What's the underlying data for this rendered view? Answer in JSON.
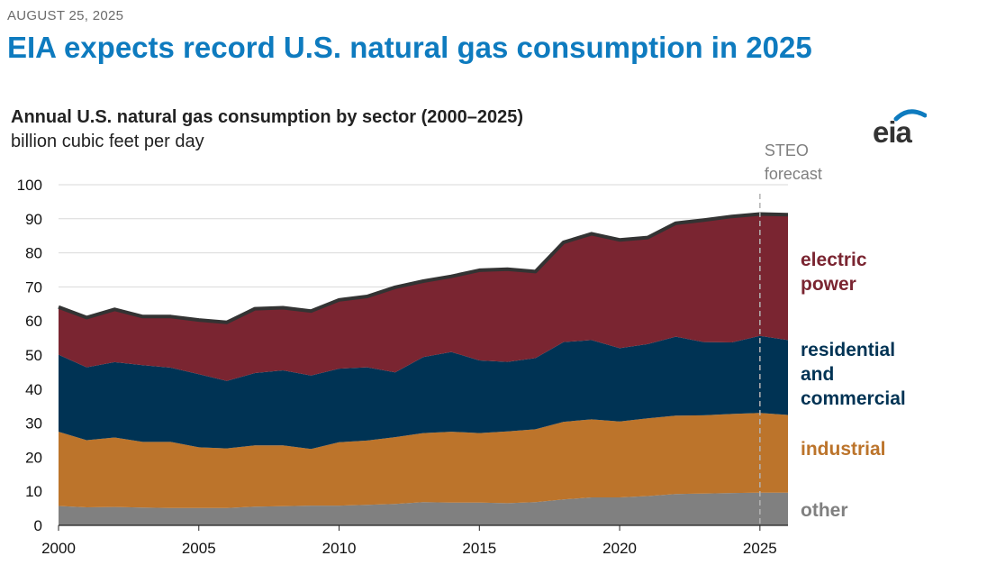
{
  "header": {
    "date": "AUGUST 25, 2025",
    "headline": "EIA expects record U.S. natural gas consumption in 2025"
  },
  "logo": {
    "text": "eia",
    "accent_color": "#0e7bbf"
  },
  "chart_data": {
    "type": "area",
    "title": "Annual U.S. natural gas consumption by sector (2000–2025)",
    "subtitle": "billion cubic feet per day",
    "stacked": true,
    "x": [
      2000,
      2001,
      2002,
      2003,
      2004,
      2005,
      2006,
      2007,
      2008,
      2009,
      2010,
      2011,
      2012,
      2013,
      2014,
      2015,
      2016,
      2017,
      2018,
      2019,
      2020,
      2021,
      2022,
      2023,
      2024,
      2025,
      2026
    ],
    "xticks": [
      2000,
      2005,
      2010,
      2015,
      2020,
      2025
    ],
    "yticks": [
      0,
      10,
      20,
      30,
      40,
      50,
      60,
      70,
      80,
      90,
      100
    ],
    "ylim": [
      0,
      100
    ],
    "xlim": [
      2000,
      2026
    ],
    "grid": "horizontal",
    "series": [
      {
        "name": "other",
        "color": "#808080",
        "values": [
          5.7,
          5.3,
          5.4,
          5.2,
          5.1,
          5.1,
          5.1,
          5.5,
          5.6,
          5.8,
          5.8,
          6.0,
          6.3,
          6.8,
          6.7,
          6.7,
          6.5,
          6.8,
          7.6,
          8.2,
          8.2,
          8.6,
          9.2,
          9.3,
          9.5,
          9.6,
          9.6
        ]
      },
      {
        "name": "industrial",
        "color": "#bc742b",
        "values": [
          21.8,
          19.7,
          20.4,
          19.3,
          19.4,
          17.8,
          17.5,
          18.0,
          17.9,
          16.6,
          18.6,
          18.9,
          19.6,
          20.3,
          20.8,
          20.4,
          21.1,
          21.4,
          22.8,
          22.9,
          22.3,
          22.8,
          23.0,
          23.0,
          23.2,
          23.4,
          22.8
        ]
      },
      {
        "name": "residential and commercial",
        "color": "#003354",
        "values": [
          22.6,
          21.4,
          22.1,
          22.5,
          21.8,
          21.5,
          19.8,
          21.2,
          22.0,
          21.6,
          21.6,
          21.5,
          19.0,
          22.3,
          23.4,
          21.3,
          20.4,
          20.9,
          23.4,
          23.3,
          21.5,
          21.8,
          23.2,
          21.5,
          21.0,
          22.6,
          22.0
        ]
      },
      {
        "name": "electric power",
        "color": "#7a2531",
        "values": [
          14.0,
          14.6,
          15.5,
          14.3,
          15.0,
          15.9,
          17.2,
          18.9,
          18.4,
          18.9,
          20.2,
          20.8,
          25.0,
          22.3,
          22.2,
          26.5,
          27.2,
          25.4,
          29.3,
          31.2,
          31.8,
          31.3,
          33.3,
          35.8,
          37.0,
          35.8,
          36.8
        ]
      }
    ],
    "series_labels": {
      "electric_power": [
        "electric",
        "power"
      ],
      "residential_commercial": [
        "residential",
        "and",
        "commercial"
      ],
      "industrial": [
        "industrial"
      ],
      "other": [
        "other"
      ]
    },
    "total_line_color": "#333333",
    "forecast": {
      "start_x": 2025,
      "label": [
        "STEO",
        "forecast"
      ],
      "color": "#b3b3b3"
    }
  }
}
